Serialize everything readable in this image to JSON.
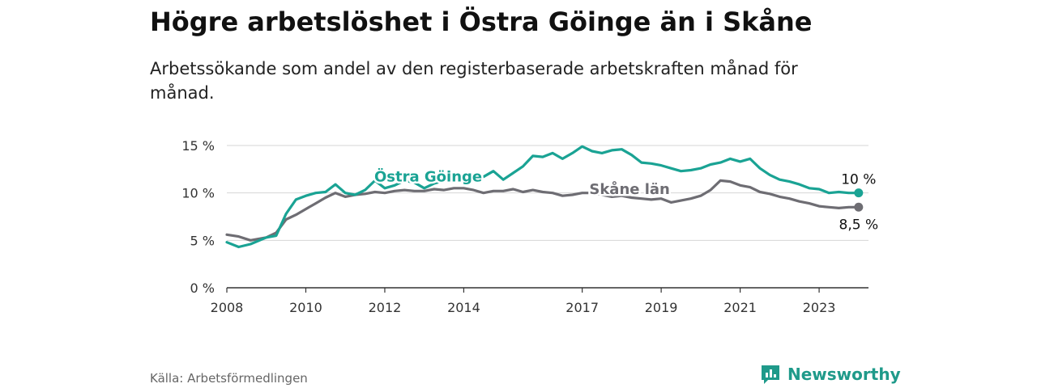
{
  "title": "Högre arbetslöshet i Östra Göinge än i Skåne",
  "subtitle": "Arbetssökande som andel av den registerbaserade arbetskraften månad för månad.",
  "source": "Källa: Arbetsförmedlingen",
  "brand": "Newsworthy",
  "colors": {
    "goinge": "#1aa394",
    "skane": "#6e6d73",
    "grid": "#d6d6d6",
    "axis": "#333333",
    "brand": "#1f9a8a"
  },
  "chart_data": {
    "type": "line",
    "title": "Högre arbetslöshet i Östra Göinge än i Skåne",
    "xlabel": "",
    "ylabel": "",
    "xlim": [
      2008.0,
      2024.25
    ],
    "ylim": [
      0,
      15
    ],
    "yticks": [
      0,
      5,
      10,
      15
    ],
    "ytick_labels": [
      "0 %",
      "5 %",
      "10 %",
      "15 %"
    ],
    "xticks": [
      2008,
      2010,
      2012,
      2014,
      2017,
      2019,
      2021,
      2023
    ],
    "xtick_labels": [
      "2008",
      "2010",
      "2012",
      "2014",
      "2017",
      "2019",
      "2021",
      "2023"
    ],
    "grid": true,
    "series": [
      {
        "name": "Östra Göinge",
        "label": "Östra Göinge",
        "end_label": "10 %",
        "x": [
          2008.0,
          2008.3,
          2008.6,
          2009.0,
          2009.25,
          2009.5,
          2009.75,
          2010.0,
          2010.25,
          2010.5,
          2010.75,
          2011.0,
          2011.25,
          2011.5,
          2011.75,
          2012.0,
          2012.25,
          2012.5,
          2012.75,
          2013.0,
          2013.25,
          2013.5,
          2013.75,
          2014.0,
          2014.25,
          2014.5,
          2014.75,
          2015.0,
          2015.25,
          2015.5,
          2015.75,
          2016.0,
          2016.25,
          2016.5,
          2016.75,
          2017.0,
          2017.25,
          2017.5,
          2017.75,
          2018.0,
          2018.25,
          2018.5,
          2018.75,
          2019.0,
          2019.25,
          2019.5,
          2019.75,
          2020.0,
          2020.25,
          2020.5,
          2020.75,
          2021.0,
          2021.25,
          2021.5,
          2021.75,
          2022.0,
          2022.25,
          2022.5,
          2022.75,
          2023.0,
          2023.25,
          2023.5,
          2023.75,
          2024.0
        ],
        "y": [
          4.8,
          4.3,
          4.6,
          5.3,
          5.5,
          7.8,
          9.3,
          9.7,
          10.0,
          10.1,
          10.9,
          10.0,
          9.8,
          10.3,
          11.3,
          10.5,
          10.8,
          11.3,
          11.1,
          10.5,
          11.0,
          11.3,
          11.6,
          11.2,
          11.9,
          11.7,
          12.3,
          11.4,
          12.1,
          12.8,
          13.9,
          13.8,
          14.2,
          13.6,
          14.2,
          14.9,
          14.4,
          14.2,
          14.5,
          14.6,
          14.0,
          13.2,
          13.1,
          12.9,
          12.6,
          12.3,
          12.4,
          12.6,
          13.0,
          13.2,
          13.6,
          13.3,
          13.6,
          12.6,
          11.9,
          11.4,
          11.2,
          10.9,
          10.5,
          10.4,
          10.0,
          10.1,
          10.0,
          10.0
        ]
      },
      {
        "name": "Skåne län",
        "label": "Skåne län",
        "end_label": "8,5 %",
        "x": [
          2008.0,
          2008.3,
          2008.6,
          2009.0,
          2009.25,
          2009.5,
          2009.75,
          2010.0,
          2010.25,
          2010.5,
          2010.75,
          2011.0,
          2011.25,
          2011.5,
          2011.75,
          2012.0,
          2012.25,
          2012.5,
          2012.75,
          2013.0,
          2013.25,
          2013.5,
          2013.75,
          2014.0,
          2014.25,
          2014.5,
          2014.75,
          2015.0,
          2015.25,
          2015.5,
          2015.75,
          2016.0,
          2016.25,
          2016.5,
          2016.75,
          2017.0,
          2017.25,
          2017.5,
          2017.75,
          2018.0,
          2018.25,
          2018.5,
          2018.75,
          2019.0,
          2019.25,
          2019.5,
          2019.75,
          2020.0,
          2020.25,
          2020.5,
          2020.75,
          2021.0,
          2021.25,
          2021.5,
          2021.75,
          2022.0,
          2022.25,
          2022.5,
          2022.75,
          2023.0,
          2023.25,
          2023.5,
          2023.75,
          2024.0
        ],
        "y": [
          5.6,
          5.4,
          5.0,
          5.3,
          5.8,
          7.2,
          7.7,
          8.3,
          8.9,
          9.5,
          10.0,
          9.6,
          9.8,
          9.9,
          10.1,
          10.0,
          10.2,
          10.3,
          10.2,
          10.2,
          10.4,
          10.3,
          10.5,
          10.5,
          10.3,
          10.0,
          10.2,
          10.2,
          10.4,
          10.1,
          10.3,
          10.1,
          10.0,
          9.7,
          9.8,
          10.0,
          10.0,
          9.8,
          9.6,
          9.7,
          9.5,
          9.4,
          9.3,
          9.4,
          9.0,
          9.2,
          9.4,
          9.7,
          10.3,
          11.3,
          11.2,
          10.8,
          10.6,
          10.1,
          9.9,
          9.6,
          9.4,
          9.1,
          8.9,
          8.6,
          8.5,
          8.4,
          8.5,
          8.5
        ]
      }
    ]
  }
}
